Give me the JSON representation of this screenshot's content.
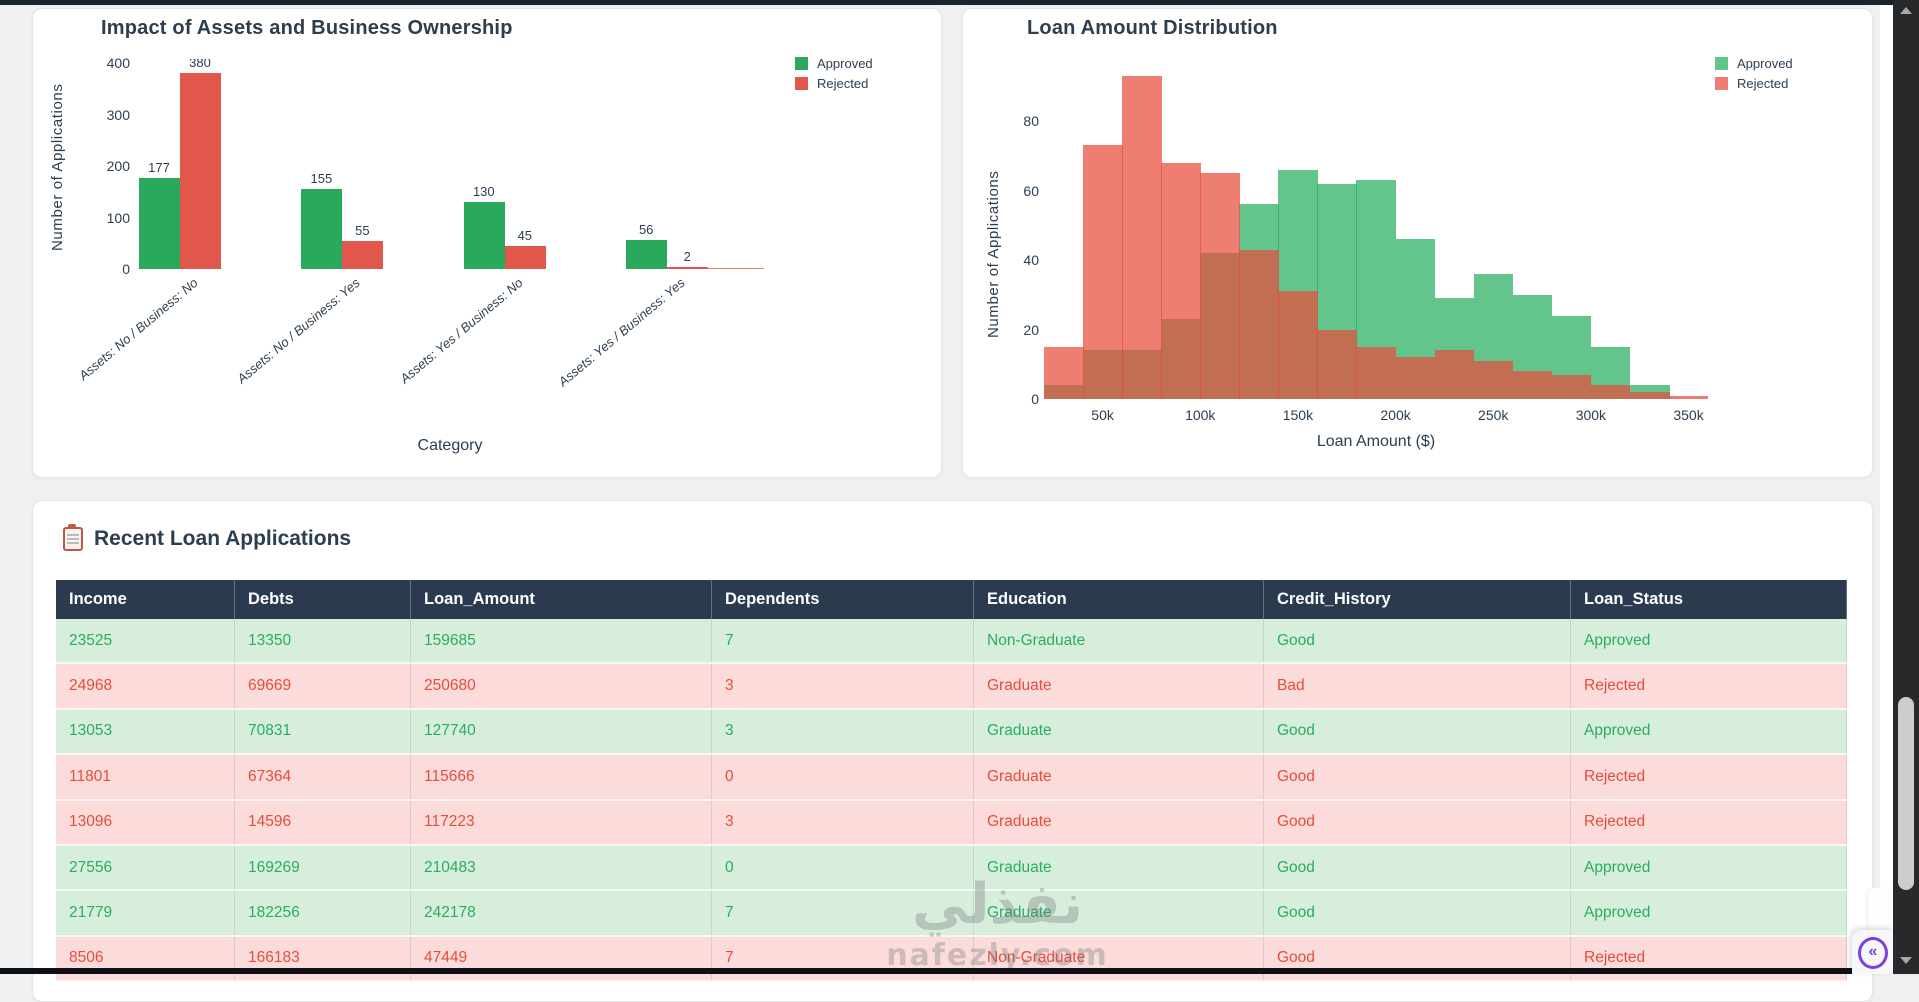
{
  "colors": {
    "bar_green": "#2aa85c",
    "bar_red": "#e2574b",
    "hist_green": "rgba(39,174,96,0.72)",
    "hist_red": "rgba(231,76,60,0.72)",
    "header_navy": "#2c3a50",
    "title_slate": "#2c3e50",
    "approved_text": "#27ae60",
    "rejected_text": "#e74c3c",
    "row_green_bg": "#d8eedd",
    "row_red_bg": "#fbdcda",
    "collapse_purple": "#7b3fe4"
  },
  "chart_data": [
    {
      "type": "bar",
      "title": "Impact of Assets and Business Ownership",
      "xlabel": "Category",
      "ylabel": "Number of Applications",
      "ylim": [
        0,
        400
      ],
      "yticks": [
        0,
        100,
        200,
        300,
        400
      ],
      "grid": false,
      "legend_position": "top-right",
      "categories": [
        "Assets: No / Business: No",
        "Assets: No / Business: Yes",
        "Assets: Yes / Business: No",
        "Assets: Yes / Business: Yes"
      ],
      "series": [
        {
          "name": "Approved",
          "color": "#2aa85c",
          "values": [
            177,
            155,
            130,
            56
          ]
        },
        {
          "name": "Rejected",
          "color": "#e2574b",
          "values": [
            380,
            55,
            45,
            2
          ]
        }
      ]
    },
    {
      "type": "histogram",
      "title": "Loan Amount Distribution",
      "xlabel": "Loan Amount ($)",
      "ylabel": "Number of Applications",
      "ylim": [
        0,
        95
      ],
      "yticks": [
        0,
        20,
        40,
        60,
        80
      ],
      "xtick_labels": [
        "50k",
        "100k",
        "150k",
        "200k",
        "250k",
        "300k",
        "350k"
      ],
      "bin_start": 20000,
      "bin_size": 20000,
      "overlay_mode": "overlap",
      "legend_position": "top-right",
      "series": [
        {
          "name": "Approved",
          "color": "rgba(39,174,96,0.72)",
          "values": [
            4,
            14,
            14,
            23,
            42,
            56,
            66,
            62,
            63,
            46,
            29,
            36,
            30,
            24,
            15,
            4,
            0
          ]
        },
        {
          "name": "Rejected",
          "color": "rgba(231,76,60,0.72)",
          "values": [
            15,
            73,
            93,
            68,
            65,
            43,
            31,
            20,
            15,
            12,
            14,
            11,
            8,
            7,
            4,
            2,
            1
          ]
        }
      ]
    }
  ],
  "table": {
    "title": "Recent Loan Applications",
    "columns": [
      "Income",
      "Debts",
      "Loan_Amount",
      "Dependents",
      "Education",
      "Credit_History",
      "Loan_Status"
    ],
    "rows": [
      [
        "23525",
        "13350",
        "159685",
        "7",
        "Non-Graduate",
        "Good",
        "Approved"
      ],
      [
        "24968",
        "69669",
        "250680",
        "3",
        "Graduate",
        "Bad",
        "Rejected"
      ],
      [
        "13053",
        "70831",
        "127740",
        "3",
        "Graduate",
        "Good",
        "Approved"
      ],
      [
        "11801",
        "67364",
        "115666",
        "0",
        "Graduate",
        "Good",
        "Rejected"
      ],
      [
        "13096",
        "14596",
        "117223",
        "3",
        "Graduate",
        "Good",
        "Rejected"
      ],
      [
        "27556",
        "169269",
        "210483",
        "0",
        "Graduate",
        "Good",
        "Approved"
      ],
      [
        "21779",
        "182256",
        "242178",
        "7",
        "Graduate",
        "Good",
        "Approved"
      ],
      [
        "8506",
        "166183",
        "47449",
        "7",
        "Non-Graduate",
        "Good",
        "Rejected"
      ]
    ]
  },
  "watermark": {
    "line1": "نفذلي",
    "line2": "nafezly.com"
  },
  "ui": {
    "collapse_glyph": "«"
  }
}
